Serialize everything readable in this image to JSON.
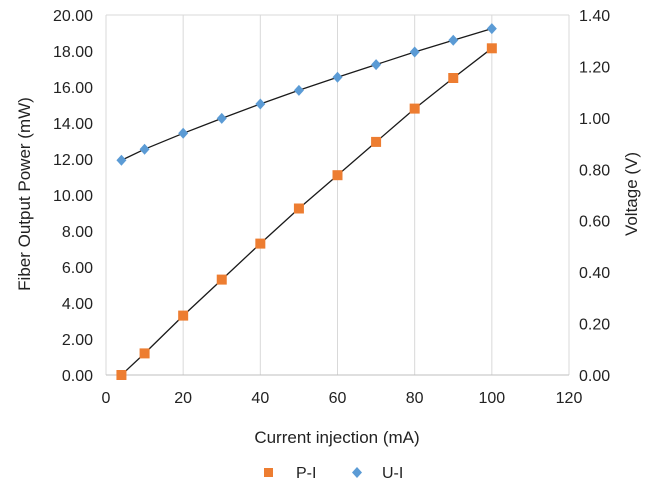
{
  "chart_data": {
    "type": "scatter",
    "xlabel": "Current injection (mA)",
    "ylabel_left": "Fiber Output Power (mW)",
    "ylabel_right": "Voltage (V)",
    "xlim": [
      0,
      120
    ],
    "ylim_left": [
      0,
      20
    ],
    "ylim_right": [
      0,
      1.4
    ],
    "x_ticks": [
      "0",
      "20",
      "40",
      "60",
      "80",
      "100",
      "120"
    ],
    "y_left_ticks": [
      "0.00",
      "2.00",
      "4.00",
      "6.00",
      "8.00",
      "10.00",
      "12.00",
      "14.00",
      "16.00",
      "18.00",
      "20.00"
    ],
    "y_right_ticks": [
      "0.00",
      "0.20",
      "0.40",
      "0.60",
      "0.80",
      "1.00",
      "1.20",
      "1.40"
    ],
    "grid": "vertical",
    "legend_position": "bottom",
    "series": [
      {
        "name": "P-I",
        "axis": "left",
        "marker": "square",
        "color": "#ED7D31",
        "x": [
          4,
          10,
          20,
          30,
          40,
          50,
          60,
          70,
          80,
          90,
          100
        ],
        "y": [
          0.0,
          1.2,
          3.3,
          5.3,
          7.3,
          9.25,
          11.1,
          12.95,
          14.8,
          16.5,
          18.15
        ]
      },
      {
        "name": "U-I",
        "axis": "right",
        "marker": "diamond",
        "color": "#5B9BD5",
        "x": [
          4,
          10,
          20,
          30,
          40,
          50,
          60,
          70,
          80,
          90,
          100
        ],
        "y": [
          0.835,
          0.878,
          0.94,
          0.998,
          1.054,
          1.107,
          1.158,
          1.207,
          1.256,
          1.302,
          1.347
        ]
      }
    ]
  }
}
